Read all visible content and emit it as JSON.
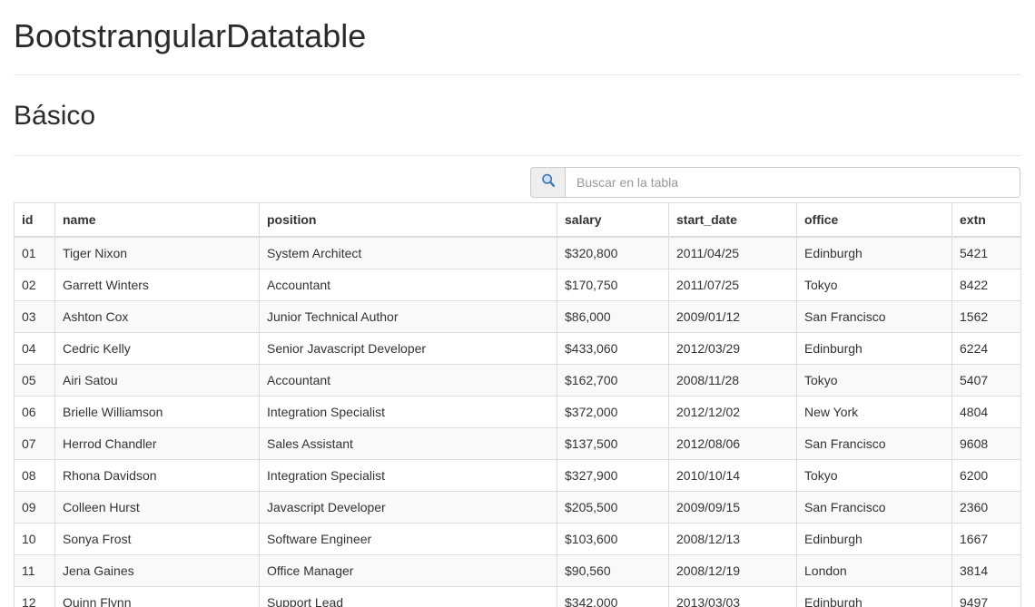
{
  "page": {
    "title": "BootstrangularDatatable",
    "section_title": "Básico"
  },
  "search": {
    "placeholder": "Buscar en la tabla",
    "value": "",
    "icon": "search-magnifier",
    "icon_color": "#3f77b5",
    "icon_fill": "#cfe1f3"
  },
  "table": {
    "columns": [
      "id",
      "name",
      "position",
      "salary",
      "start_date",
      "office",
      "extn"
    ],
    "rows": [
      [
        "01",
        "Tiger Nixon",
        "System Architect",
        "$320,800",
        "2011/04/25",
        "Edinburgh",
        "5421"
      ],
      [
        "02",
        "Garrett Winters",
        "Accountant",
        "$170,750",
        "2011/07/25",
        "Tokyo",
        "8422"
      ],
      [
        "03",
        "Ashton Cox",
        "Junior Technical Author",
        "$86,000",
        "2009/01/12",
        "San Francisco",
        "1562"
      ],
      [
        "04",
        "Cedric Kelly",
        "Senior Javascript Developer",
        "$433,060",
        "2012/03/29",
        "Edinburgh",
        "6224"
      ],
      [
        "05",
        "Airi Satou",
        "Accountant",
        "$162,700",
        "2008/11/28",
        "Tokyo",
        "5407"
      ],
      [
        "06",
        "Brielle Williamson",
        "Integration Specialist",
        "$372,000",
        "2012/12/02",
        "New York",
        "4804"
      ],
      [
        "07",
        "Herrod Chandler",
        "Sales Assistant",
        "$137,500",
        "2012/08/06",
        "San Francisco",
        "9608"
      ],
      [
        "08",
        "Rhona Davidson",
        "Integration Specialist",
        "$327,900",
        "2010/10/14",
        "Tokyo",
        "6200"
      ],
      [
        "09",
        "Colleen Hurst",
        "Javascript Developer",
        "$205,500",
        "2009/09/15",
        "San Francisco",
        "2360"
      ],
      [
        "10",
        "Sonya Frost",
        "Software Engineer",
        "$103,600",
        "2008/12/13",
        "Edinburgh",
        "1667"
      ],
      [
        "11",
        "Jena Gaines",
        "Office Manager",
        "$90,560",
        "2008/12/19",
        "London",
        "3814"
      ],
      [
        "12",
        "Quinn Flynn",
        "Support Lead",
        "$342,000",
        "2013/03/03",
        "Edinburgh",
        "9497"
      ]
    ]
  },
  "colors": {
    "striped_row": "#f9f9f9",
    "table_border": "#ddd",
    "rule": "#e7e7e7",
    "addon_bg": "#eeeeee",
    "input_border": "#ccc",
    "text": "#333",
    "placeholder": "#999"
  }
}
